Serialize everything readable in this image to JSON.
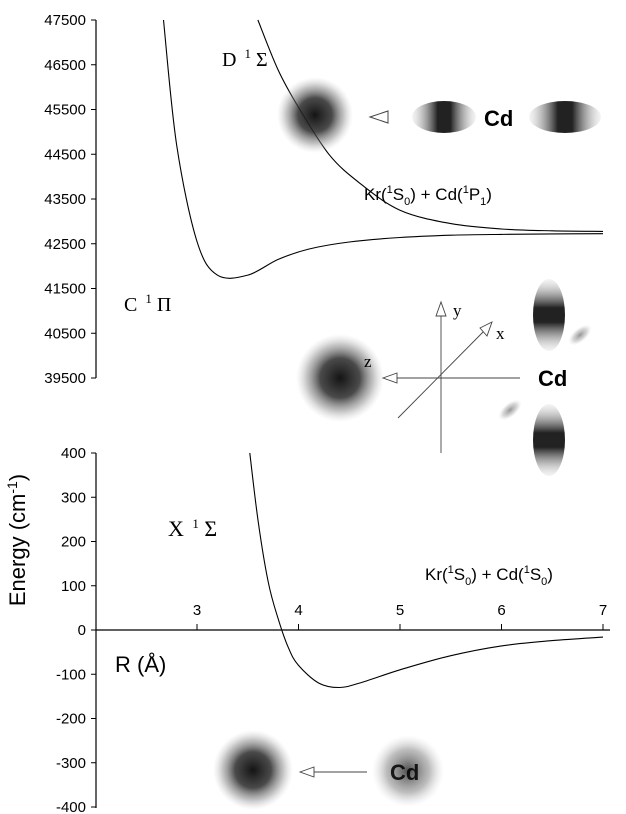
{
  "colors": {
    "ink": "#000000",
    "background": "#ffffff",
    "cloud": "#141414"
  },
  "chart_data": [
    {
      "type": "line",
      "panel": "upper",
      "ylim": [
        39500,
        47500
      ],
      "yticks": [
        "47500",
        "46500",
        "45500",
        "44500",
        "43500",
        "42500",
        "41500",
        "40500",
        "39500"
      ],
      "x_domain_A": [
        2.2,
        7.0
      ],
      "series": [
        {
          "name": "D ¹Σ",
          "x": [
            3.6,
            3.8,
            4.0,
            4.3,
            4.6,
            5.0,
            5.5,
            6.0,
            6.5,
            7.0
          ],
          "y": [
            47500,
            46380,
            45550,
            44500,
            43860,
            43250,
            42950,
            42830,
            42790,
            42775
          ]
        },
        {
          "name": "C ¹Π",
          "x": [
            2.67,
            2.8,
            3.0,
            3.2,
            3.5,
            3.8,
            4.1,
            4.5,
            5.0,
            5.5,
            6.0,
            6.5,
            7.0
          ],
          "y": [
            47500,
            44700,
            42550,
            41800,
            41800,
            42150,
            42380,
            42540,
            42640,
            42690,
            42710,
            42720,
            42725
          ]
        }
      ],
      "annotations": {
        "d_state": {
          "letter": "D",
          "sup": "1",
          "sym": "Σ"
        },
        "c_state": {
          "letter": "C",
          "sup": "1",
          "sym": "Π"
        },
        "asymptote": {
          "a": "Kr(",
          "a_sup": "1",
          "b": "S",
          "b_sub": "0",
          "c": ") + Cd(",
          "c_sup": "1",
          "d": "P",
          "d_sub": "1",
          "e": ")"
        },
        "cd_label_top": "Cd",
        "cd_label_mid": "Cd",
        "axis_x": "x",
        "axis_y": "y",
        "axis_z": "z"
      }
    },
    {
      "type": "line",
      "panel": "lower",
      "ylim": [
        -400,
        400
      ],
      "yticks": [
        "400",
        "300",
        "200",
        "100",
        "0",
        "-100",
        "-200",
        "-300",
        "-400"
      ],
      "x_categories": [
        "3",
        "4",
        "5",
        "6",
        "7"
      ],
      "xlim": [
        2.2,
        7.0
      ],
      "xlabel": {
        "text": "R (Å)"
      },
      "ylabel": {
        "pre": "Energy (cm",
        "sup": "-1",
        "post": ")"
      },
      "series": [
        {
          "name": "X ¹Σ",
          "x": [
            3.52,
            3.6,
            3.7,
            3.8,
            3.9,
            4.0,
            4.2,
            4.4,
            4.6,
            5.0,
            5.5,
            6.0,
            6.5,
            7.0
          ],
          "y": [
            400,
            250,
            110,
            25,
            -40,
            -80,
            -120,
            -130,
            -120,
            -90,
            -58,
            -36,
            -24,
            -16
          ]
        }
      ],
      "annotations": {
        "x_state": {
          "letter": "X",
          "sup": "1",
          "sym": "Σ"
        },
        "asymptote": {
          "a": "Kr(",
          "a_sup": "1",
          "b": "S",
          "b_sub": "0",
          "c": ") + Cd(",
          "c_sup": "1",
          "d": "S",
          "d_sub": "0",
          "e": ")"
        },
        "cd_label_bottom": "Cd"
      }
    }
  ]
}
